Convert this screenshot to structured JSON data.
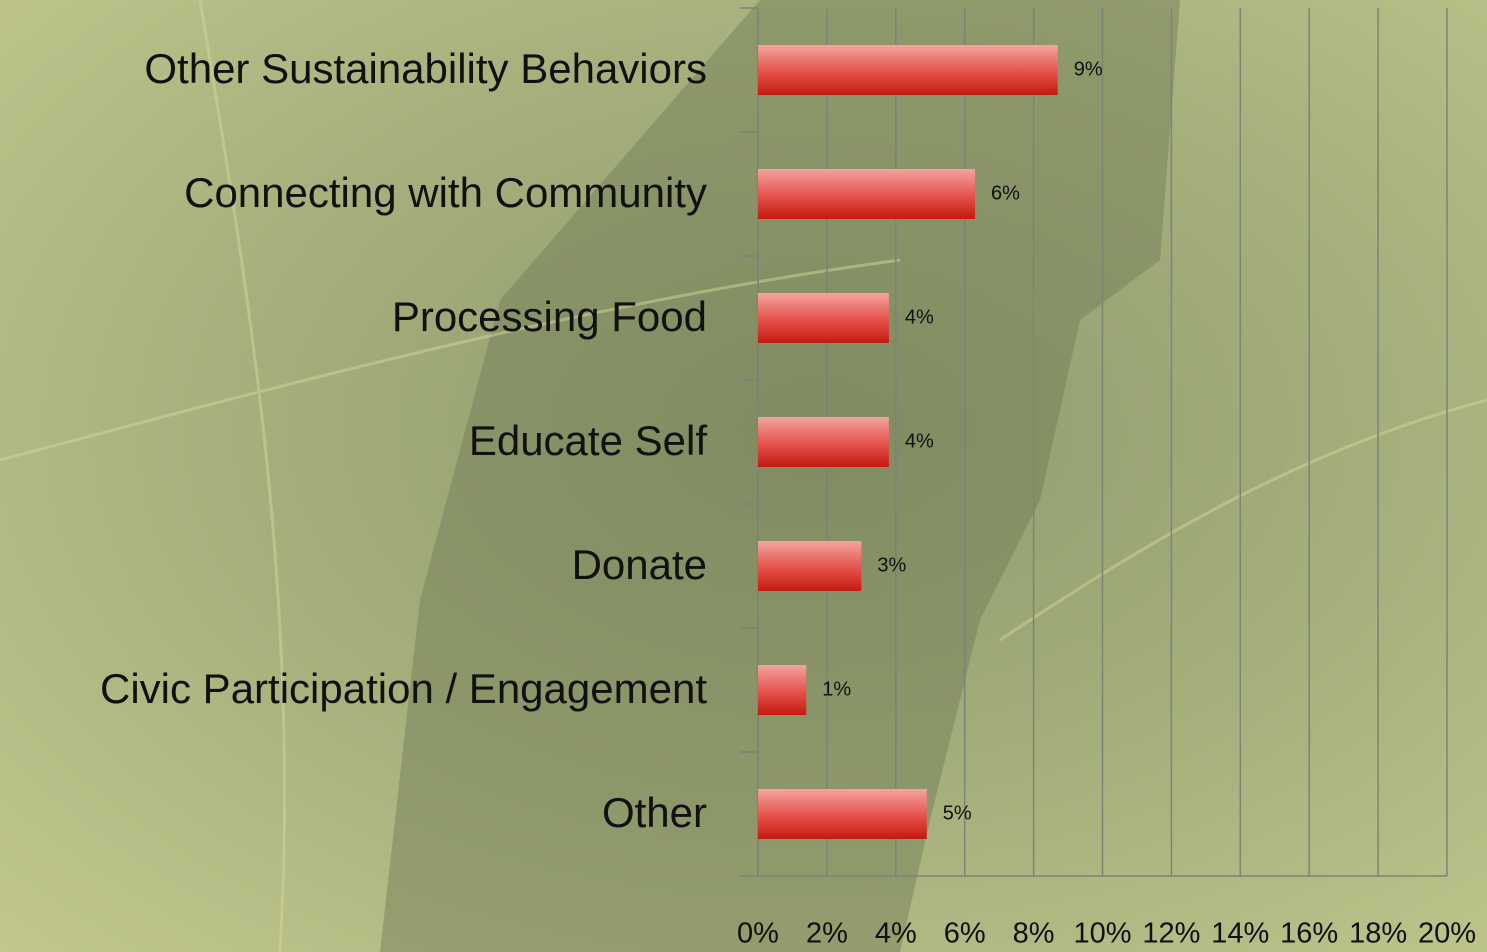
{
  "chart_data": {
    "type": "hbar",
    "categories": [
      "Other Sustainability Behaviors",
      "Connecting with Community",
      "Processing Food",
      "Educate Self",
      "Donate",
      "Civic Participation / Engagement",
      "Other"
    ],
    "values": [
      8.7,
      6.3,
      3.8,
      3.8,
      3.0,
      1.4,
      4.9
    ],
    "value_labels": [
      "9%",
      "6%",
      "4%",
      "4%",
      "3%",
      "1%",
      "5%"
    ],
    "color": "#d42a1e",
    "xlim": [
      0,
      20
    ],
    "xticks": [
      {
        "value": 0,
        "label": "0%"
      },
      {
        "value": 2,
        "label": "2%"
      },
      {
        "value": 4,
        "label": "4%"
      },
      {
        "value": 6,
        "label": "6%"
      },
      {
        "value": 8,
        "label": "8%"
      },
      {
        "value": 10,
        "label": "10%"
      },
      {
        "value": 12,
        "label": "12%"
      },
      {
        "value": 14,
        "label": "14%"
      },
      {
        "value": 16,
        "label": "16%"
      },
      {
        "value": 18,
        "label": "18%"
      },
      {
        "value": 20,
        "label": "20%"
      }
    ],
    "grid": true
  }
}
